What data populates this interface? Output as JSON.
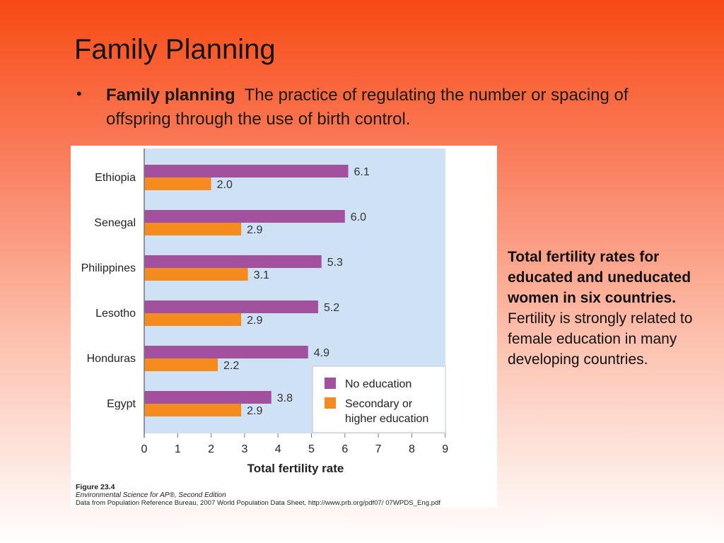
{
  "slide": {
    "title": "Family Planning",
    "bullet": {
      "term": "Family planning",
      "definition": "The practice of regulating the number or spacing of offspring through the use of birth control."
    },
    "caption_bold": "Total fertility rates for educated and uneducated women in six countries.",
    "caption_rest": "Fertility is strongly related to female education in many developing countries."
  },
  "figure": {
    "label": "Figure 23.4",
    "source_book": "Environmental Science for AP®, Second Edition",
    "source_data": "Data from Population Reference Bureau, 2007 World Population Data Sheet, http://www.prb.org/pdf07/ 07WPDS_Eng.pdf"
  },
  "colors": {
    "no_education": "#a3509f",
    "secondary": "#f58a1f",
    "plot_bg": "#cfe1f4"
  },
  "chart_data": {
    "type": "bar",
    "orientation": "horizontal",
    "categories": [
      "Ethiopia",
      "Senegal",
      "Philippines",
      "Lesotho",
      "Honduras",
      "Egypt"
    ],
    "series": [
      {
        "name": "No education",
        "values": [
          6.1,
          6.0,
          5.3,
          5.2,
          4.9,
          3.8
        ]
      },
      {
        "name": "Secondary or higher education",
        "values": [
          2.0,
          2.9,
          3.1,
          2.9,
          2.2,
          2.9
        ]
      }
    ],
    "xlabel": "Total fertility rate",
    "xlim": [
      0,
      9
    ],
    "xticks": [
      "0",
      "1",
      "2",
      "3",
      "4",
      "5",
      "6",
      "7",
      "8",
      "9"
    ],
    "legend_position": "bottom-right",
    "grid": false
  }
}
